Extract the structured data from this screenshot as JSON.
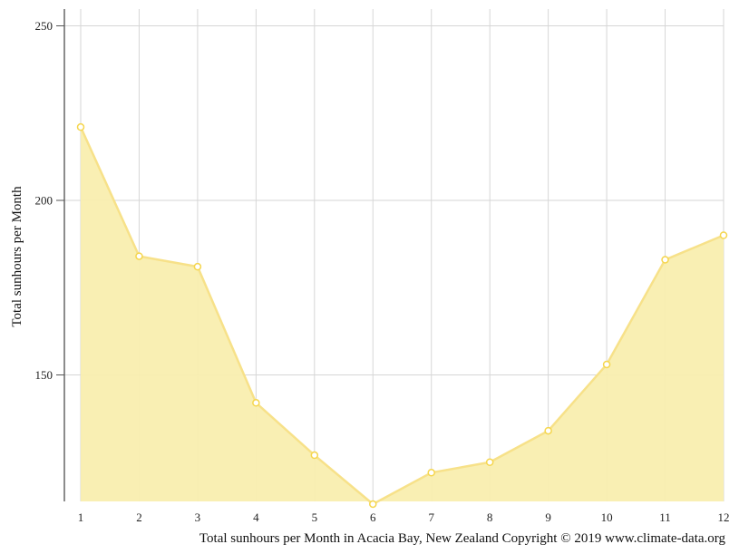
{
  "chart_data": {
    "type": "area",
    "title": "",
    "xlabel": "Total sunhours per Month in Acacia Bay, New Zealand Copyright © 2019 www.climate-data.org",
    "ylabel": "Total sunhours per Month",
    "categories": [
      "1",
      "2",
      "3",
      "4",
      "5",
      "6",
      "7",
      "8",
      "9",
      "10",
      "11",
      "12"
    ],
    "series": [
      {
        "name": "Total sunhours per Month",
        "values": [
          221,
          184,
          181,
          142,
          127,
          113,
          122,
          125,
          134,
          153,
          183,
          190
        ],
        "color": "#f5d64e"
      }
    ],
    "yticks": [
      150,
      200,
      250
    ],
    "ylim": [
      113.6,
      254
    ],
    "grid": true,
    "legend": "none"
  },
  "axes": {
    "y_tick_labels": [
      "150",
      "200",
      "250"
    ],
    "x_tick_labels": [
      "1",
      "2",
      "3",
      "4",
      "5",
      "6",
      "7",
      "8",
      "9",
      "10",
      "11",
      "12"
    ]
  },
  "colors": {
    "fill": "#f9eeaf",
    "line": "#f7e189",
    "marker": "#f5d64e",
    "grid": "#d6d6d6"
  }
}
